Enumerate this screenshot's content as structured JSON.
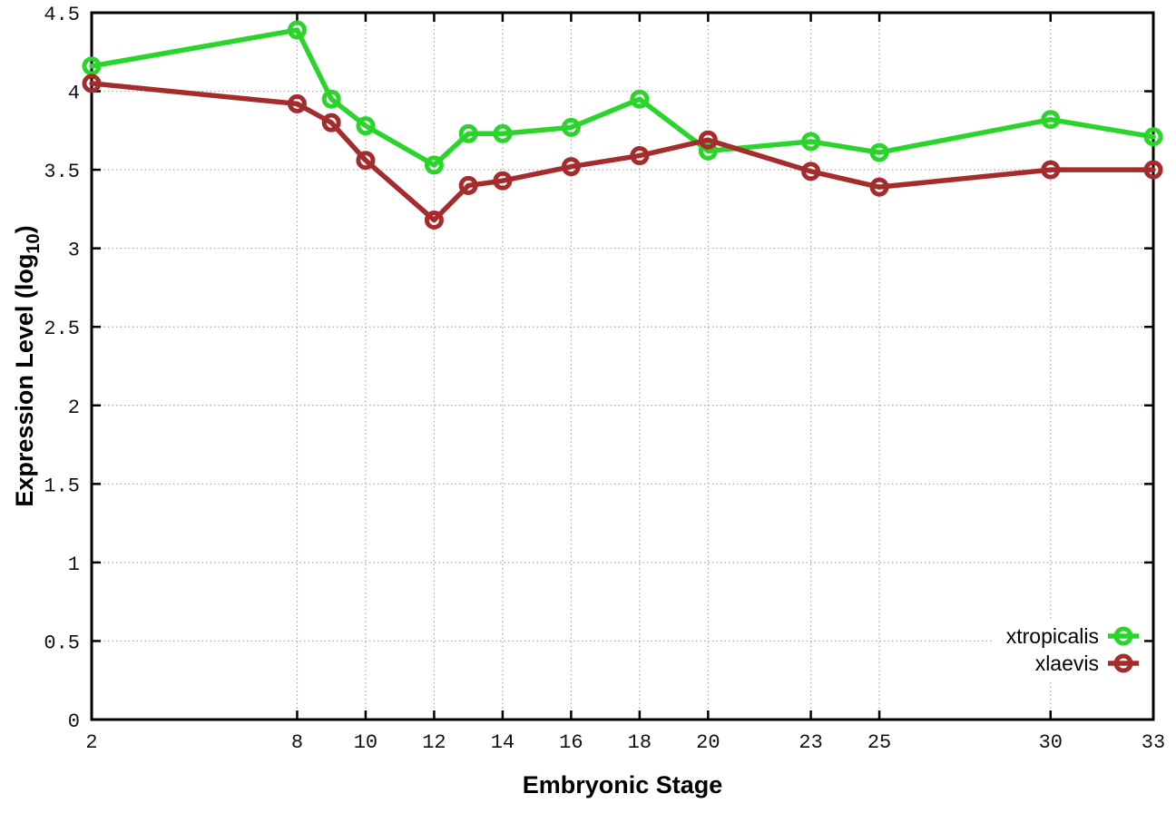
{
  "chart_data": {
    "type": "line",
    "title": "",
    "xlabel": "Embryonic Stage",
    "ylabel": {
      "text": "Expression Level (log",
      "sub": "10",
      "suffix": ")"
    },
    "x": [
      2,
      8,
      9,
      10,
      12,
      13,
      14,
      16,
      18,
      20,
      23,
      25,
      30,
      33
    ],
    "series": [
      {
        "name": "xtropicalis",
        "color": "#2bd42b",
        "values": [
          4.16,
          4.39,
          3.95,
          3.78,
          3.53,
          3.73,
          3.73,
          3.77,
          3.95,
          3.62,
          3.68,
          3.61,
          3.82,
          3.71
        ]
      },
      {
        "name": "xlaevis",
        "color": "#a52c2c",
        "values": [
          4.05,
          3.92,
          3.8,
          3.56,
          3.18,
          3.4,
          3.43,
          3.52,
          3.59,
          3.69,
          3.49,
          3.39,
          3.5,
          3.5
        ]
      }
    ],
    "xlim": [
      2,
      33
    ],
    "ylim": [
      0,
      4.5
    ],
    "xticks": [
      2,
      8,
      10,
      12,
      14,
      16,
      18,
      20,
      23,
      25,
      30,
      33
    ],
    "xtick_labels": [
      "2",
      "8",
      "10",
      "12",
      "14",
      "16",
      "18",
      "20",
      "23",
      "25",
      "30",
      "33"
    ],
    "yticks": [
      0,
      0.5,
      1,
      1.5,
      2,
      2.5,
      3,
      3.5,
      4,
      4.5
    ],
    "ytick_labels": [
      "0",
      "0.5",
      "1",
      "1.5",
      "2",
      "2.5",
      "3",
      "3.5",
      "4",
      "4.5"
    ],
    "grid": true,
    "legend_position": "bottom-right",
    "legend": [
      {
        "label": "xtropicalis",
        "color": "#2bd42b"
      },
      {
        "label": "xlaevis",
        "color": "#a52c2c"
      }
    ]
  },
  "colors": {
    "background": "#ffffff",
    "border": "#000000",
    "grid": "#a8a8a8",
    "tick_text": "#111111",
    "series_green": "#2bd42b",
    "series_brown": "#a52c2c"
  }
}
